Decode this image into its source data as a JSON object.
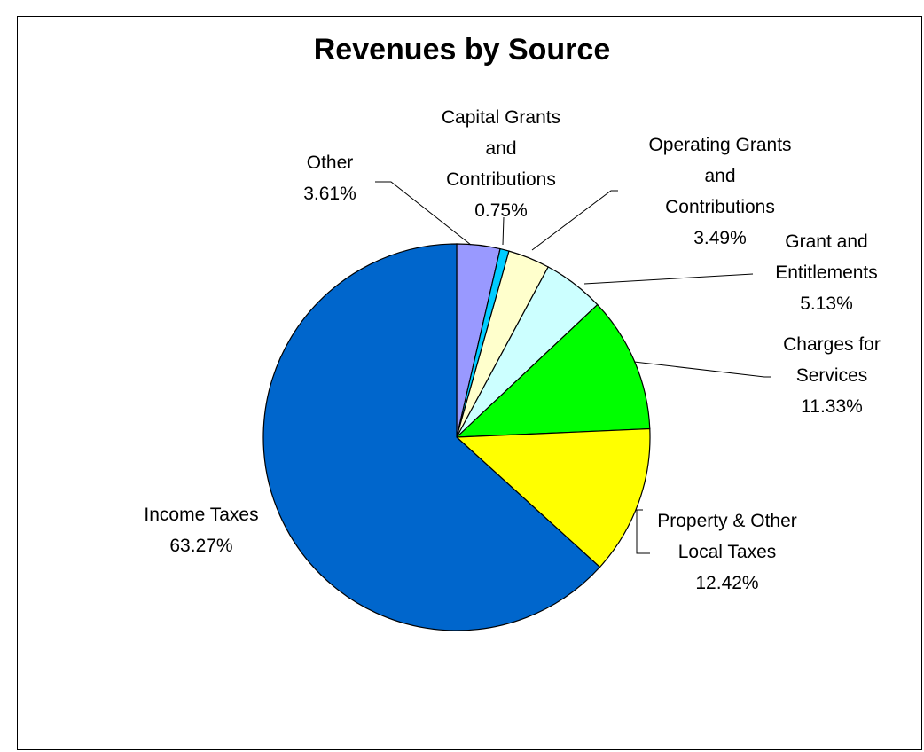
{
  "chart_data": {
    "type": "pie",
    "title": "Revenues by Source",
    "slices": [
      {
        "label": "Other",
        "value": 3.61,
        "value_label": "3.61%",
        "color": "#9999FF"
      },
      {
        "label": "Capital Grants and Contributions",
        "value": 0.75,
        "value_label": "0.75%",
        "color": "#00CCFF"
      },
      {
        "label": "Operating Grants and Contributions",
        "value": 3.49,
        "value_label": "3.49%",
        "color": "#FFFFCC"
      },
      {
        "label": "Grant and Entitlements",
        "value": 5.13,
        "value_label": "5.13%",
        "color": "#CCFFFF"
      },
      {
        "label": "Charges for Services",
        "value": 11.33,
        "value_label": "11.33%",
        "color": "#00FF00"
      },
      {
        "label": "Property & Other Local Taxes",
        "value": 12.42,
        "value_label": "12.42%",
        "color": "#FFFF00"
      },
      {
        "label": "Income Taxes",
        "value": 63.27,
        "value_label": "63.27%",
        "color": "#0066CC"
      }
    ]
  }
}
